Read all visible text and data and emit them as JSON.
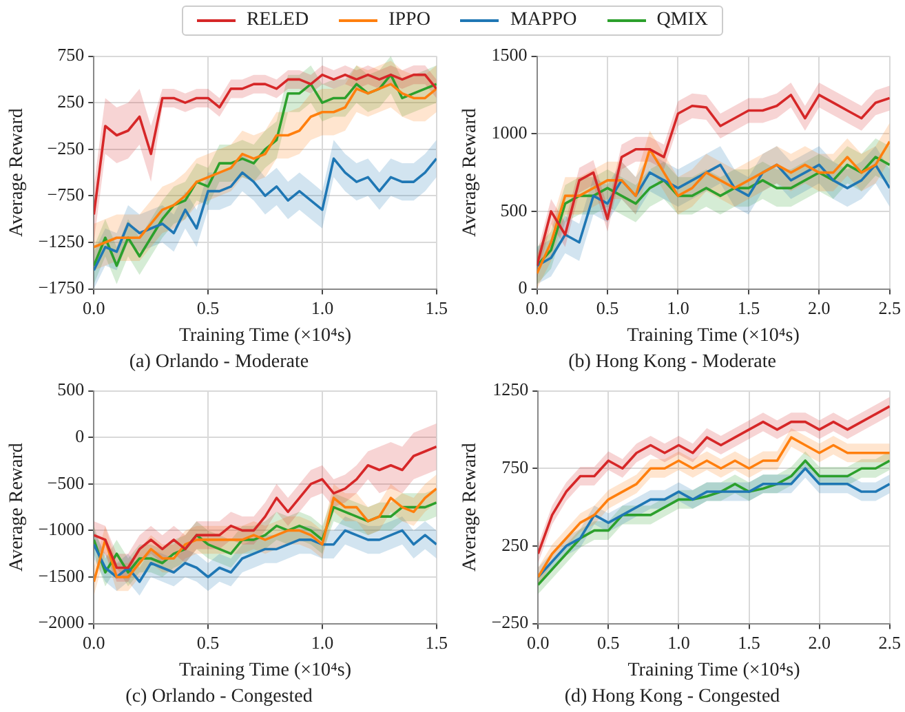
{
  "chart_data": [
    {
      "type": "line",
      "title": "(a) Orlando - Moderate",
      "xlabel": "Training Time (×10⁴s)",
      "ylabel": "Average Reward",
      "legend": "top",
      "grid": true,
      "x": [
        0,
        0.05,
        0.1,
        0.15,
        0.2,
        0.25,
        0.3,
        0.35,
        0.4,
        0.45,
        0.5,
        0.55,
        0.6,
        0.65,
        0.7,
        0.75,
        0.8,
        0.85,
        0.9,
        0.95,
        1.0,
        1.05,
        1.1,
        1.15,
        1.2,
        1.25,
        1.3,
        1.35,
        1.4,
        1.45,
        1.5
      ],
      "xlim": [
        0,
        1.5
      ],
      "xticks": [
        {
          "value": 0,
          "label": "0.0"
        },
        0.5,
        {
          "value": 1,
          "label": "1.0"
        },
        1.5
      ],
      "ylim": [
        -1750,
        750
      ],
      "yticks": [
        {
          "value": -1750,
          "label": "−1750"
        },
        {
          "value": -1250,
          "label": "−1250"
        },
        {
          "value": -750,
          "label": "−750"
        },
        {
          "value": -250,
          "label": "−250"
        },
        250,
        750
      ],
      "series": [
        {
          "name": "RELED",
          "color": "#d62728",
          "values": [
            -950,
            0,
            -100,
            -50,
            100,
            -300,
            300,
            300,
            250,
            300,
            300,
            200,
            400,
            400,
            450,
            450,
            400,
            500,
            500,
            450,
            550,
            500,
            550,
            500,
            550,
            500,
            550,
            500,
            550,
            550,
            400
          ],
          "lower": [
            -1250,
            -300,
            -400,
            -350,
            -200,
            -600,
            200,
            200,
            150,
            200,
            200,
            100,
            300,
            300,
            350,
            350,
            300,
            400,
            400,
            350,
            450,
            400,
            450,
            400,
            450,
            400,
            450,
            400,
            450,
            450,
            300
          ],
          "upper": [
            -650,
            300,
            200,
            250,
            400,
            0,
            400,
            400,
            350,
            400,
            400,
            300,
            500,
            500,
            550,
            550,
            500,
            600,
            600,
            550,
            650,
            600,
            650,
            600,
            650,
            600,
            650,
            600,
            650,
            650,
            500
          ]
        },
        {
          "name": "IPPO",
          "color": "#ff7f0e",
          "values": [
            -1300,
            -1250,
            -1200,
            -1200,
            -1200,
            -1050,
            -900,
            -850,
            -750,
            -600,
            -550,
            -500,
            -450,
            -300,
            -350,
            -300,
            -100,
            -100,
            -50,
            100,
            150,
            150,
            200,
            400,
            350,
            400,
            450,
            350,
            300,
            300,
            400
          ],
          "lower": [
            -1550,
            -1500,
            -1450,
            -1450,
            -1450,
            -1300,
            -1150,
            -1100,
            -1000,
            -850,
            -800,
            -750,
            -700,
            -550,
            -600,
            -550,
            -350,
            -350,
            -300,
            -150,
            -100,
            -100,
            -50,
            150,
            100,
            150,
            200,
            100,
            50,
            50,
            150
          ],
          "upper": [
            -1050,
            -1000,
            -950,
            -950,
            -950,
            -800,
            -650,
            -600,
            -500,
            -350,
            -300,
            -250,
            -200,
            -50,
            -100,
            -50,
            150,
            150,
            200,
            350,
            400,
            400,
            450,
            650,
            600,
            650,
            700,
            600,
            550,
            550,
            650
          ]
        },
        {
          "name": "MAPPO",
          "color": "#1f77b4",
          "values": [
            -1550,
            -1300,
            -1350,
            -1050,
            -1150,
            -1100,
            -1050,
            -1150,
            -900,
            -1100,
            -700,
            -700,
            -650,
            -500,
            -600,
            -750,
            -650,
            -800,
            -700,
            -800,
            -900,
            -350,
            -500,
            -600,
            -550,
            -700,
            -550,
            -600,
            -600,
            -500,
            -350
          ],
          "lower": [
            -1750,
            -1500,
            -1550,
            -1250,
            -1350,
            -1300,
            -1250,
            -1350,
            -1100,
            -1300,
            -900,
            -900,
            -850,
            -700,
            -800,
            -950,
            -850,
            -1000,
            -900,
            -1000,
            -1100,
            -550,
            -700,
            -800,
            -750,
            -900,
            -750,
            -800,
            -800,
            -700,
            -550
          ],
          "upper": [
            -1350,
            -1100,
            -1150,
            -850,
            -950,
            -900,
            -850,
            -950,
            -700,
            -900,
            -500,
            -500,
            -450,
            -300,
            -400,
            -550,
            -450,
            -600,
            -500,
            -600,
            -700,
            -150,
            -300,
            -400,
            -350,
            -500,
            -350,
            -400,
            -400,
            -300,
            -150
          ]
        },
        {
          "name": "QMIX",
          "color": "#2ca02c",
          "values": [
            -1500,
            -1200,
            -1500,
            -1200,
            -1400,
            -1200,
            -1000,
            -850,
            -800,
            -600,
            -650,
            -400,
            -400,
            -350,
            -400,
            -250,
            -150,
            350,
            350,
            450,
            250,
            300,
            300,
            450,
            350,
            400,
            550,
            300,
            350,
            400,
            450
          ],
          "lower": [
            -1700,
            -1400,
            -1700,
            -1400,
            -1600,
            -1400,
            -1200,
            -1050,
            -1000,
            -800,
            -850,
            -600,
            -600,
            -550,
            -600,
            -450,
            -350,
            150,
            150,
            250,
            50,
            100,
            100,
            250,
            150,
            200,
            350,
            100,
            150,
            200,
            250
          ],
          "upper": [
            -1300,
            -1000,
            -1300,
            -1000,
            -1200,
            -1000,
            -800,
            -650,
            -600,
            -400,
            -450,
            -200,
            -200,
            -150,
            -200,
            -50,
            50,
            550,
            550,
            650,
            450,
            500,
            500,
            650,
            550,
            600,
            750,
            500,
            550,
            600,
            650
          ]
        }
      ]
    },
    {
      "type": "line",
      "title": "(b) Hong Kong - Moderate",
      "xlabel": "Training Time (×10⁴s)",
      "ylabel": "Average Reward",
      "grid": true,
      "x": [
        0,
        0.1,
        0.2,
        0.3,
        0.4,
        0.5,
        0.6,
        0.7,
        0.8,
        0.9,
        1.0,
        1.1,
        1.2,
        1.3,
        1.4,
        1.5,
        1.6,
        1.7,
        1.8,
        1.9,
        2.0,
        2.1,
        2.2,
        2.3,
        2.4,
        2.5
      ],
      "xlim": [
        0,
        2.5
      ],
      "xticks": [
        {
          "value": 0,
          "label": "0.0"
        },
        0.5,
        {
          "value": 1,
          "label": "1.0"
        },
        1.5,
        {
          "value": 2,
          "label": "2.0"
        },
        2.5
      ],
      "ylim": [
        0,
        1500
      ],
      "yticks": [
        0,
        500,
        1000,
        1500
      ],
      "series": [
        {
          "color": "#d62728",
          "values": [
            150,
            500,
            350,
            700,
            750,
            450,
            850,
            900,
            900,
            850,
            1130,
            1180,
            1170,
            1050,
            1100,
            1150,
            1150,
            1180,
            1250,
            1100,
            1250,
            1200,
            1150,
            1100,
            1200,
            1230
          ],
          "lower": [
            70,
            420,
            270,
            620,
            670,
            370,
            770,
            820,
            820,
            770,
            1050,
            1100,
            1090,
            970,
            1020,
            1070,
            1070,
            1100,
            1170,
            1020,
            1170,
            1120,
            1070,
            1020,
            1120,
            1150
          ],
          "upper": [
            230,
            580,
            430,
            780,
            830,
            530,
            930,
            980,
            980,
            930,
            1210,
            1260,
            1250,
            1130,
            1180,
            1230,
            1230,
            1260,
            1330,
            1180,
            1330,
            1280,
            1230,
            1180,
            1280,
            1310
          ]
        },
        {
          "color": "#ff7f0e",
          "values": [
            100,
            300,
            600,
            600,
            650,
            700,
            700,
            600,
            900,
            750,
            600,
            650,
            750,
            700,
            650,
            700,
            750,
            800,
            750,
            800,
            750,
            750,
            850,
            750,
            800,
            950
          ],
          "lower": [
            0,
            180,
            480,
            480,
            530,
            580,
            580,
            480,
            780,
            630,
            480,
            530,
            630,
            580,
            530,
            580,
            630,
            680,
            630,
            680,
            630,
            630,
            730,
            630,
            680,
            830
          ],
          "upper": [
            220,
            420,
            720,
            720,
            770,
            820,
            820,
            720,
            1020,
            870,
            720,
            770,
            870,
            820,
            770,
            820,
            870,
            920,
            870,
            920,
            870,
            870,
            970,
            870,
            920,
            1070
          ]
        },
        {
          "color": "#1f77b4",
          "values": [
            150,
            200,
            350,
            300,
            600,
            550,
            700,
            600,
            750,
            700,
            650,
            700,
            750,
            800,
            650,
            600,
            750,
            800,
            700,
            750,
            800,
            700,
            650,
            700,
            800,
            650
          ],
          "lower": [
            30,
            80,
            230,
            180,
            480,
            430,
            580,
            480,
            630,
            580,
            530,
            580,
            630,
            680,
            530,
            480,
            630,
            680,
            580,
            630,
            680,
            580,
            530,
            580,
            680,
            530
          ],
          "upper": [
            270,
            320,
            470,
            420,
            720,
            670,
            820,
            720,
            870,
            820,
            770,
            820,
            870,
            920,
            770,
            720,
            870,
            920,
            820,
            870,
            920,
            820,
            770,
            820,
            920,
            770
          ]
        },
        {
          "color": "#2ca02c",
          "values": [
            150,
            250,
            550,
            600,
            600,
            650,
            600,
            550,
            650,
            700,
            600,
            600,
            650,
            600,
            650,
            650,
            700,
            650,
            650,
            700,
            750,
            700,
            800,
            750,
            850,
            800
          ],
          "lower": [
            30,
            130,
            430,
            480,
            480,
            530,
            480,
            430,
            530,
            580,
            480,
            480,
            530,
            480,
            530,
            530,
            580,
            530,
            530,
            580,
            630,
            580,
            680,
            630,
            730,
            680
          ],
          "upper": [
            270,
            370,
            670,
            720,
            720,
            770,
            720,
            670,
            770,
            820,
            720,
            720,
            770,
            720,
            770,
            770,
            820,
            770,
            770,
            820,
            870,
            820,
            920,
            870,
            970,
            920
          ]
        }
      ]
    },
    {
      "type": "line",
      "title": "(c) Orlando - Congested",
      "xlabel": "Training Time (×10⁴s)",
      "ylabel": "Average Reward",
      "grid": true,
      "x": [
        0,
        0.05,
        0.1,
        0.15,
        0.2,
        0.25,
        0.3,
        0.35,
        0.4,
        0.45,
        0.5,
        0.55,
        0.6,
        0.65,
        0.7,
        0.75,
        0.8,
        0.85,
        0.9,
        0.95,
        1.0,
        1.05,
        1.1,
        1.15,
        1.2,
        1.25,
        1.3,
        1.35,
        1.4,
        1.45,
        1.5
      ],
      "xlim": [
        0,
        1.5
      ],
      "xticks": [
        {
          "value": 0,
          "label": "0.0"
        },
        0.5,
        {
          "value": 1,
          "label": "1.0"
        },
        1.5
      ],
      "ylim": [
        -2000,
        500
      ],
      "yticks": [
        {
          "value": -2000,
          "label": "−2000"
        },
        {
          "value": -1500,
          "label": "−1500"
        },
        {
          "value": -1000,
          "label": "−1000"
        },
        {
          "value": -500,
          "label": "−500"
        },
        0,
        500
      ],
      "series": [
        {
          "color": "#d62728",
          "values": [
            -1050,
            -1100,
            -1400,
            -1400,
            -1200,
            -1100,
            -1200,
            -1100,
            -1200,
            -1050,
            -1050,
            -1050,
            -950,
            -1000,
            -1000,
            -850,
            -650,
            -800,
            -650,
            -500,
            -450,
            -600,
            -550,
            -450,
            -300,
            -350,
            -300,
            -350,
            -200,
            -150,
            -100
          ],
          "lower": [
            -1200,
            -1250,
            -1550,
            -1550,
            -1350,
            -1250,
            -1350,
            -1250,
            -1350,
            -1200,
            -1200,
            -1200,
            -1100,
            -1150,
            -1150,
            -1000,
            -800,
            -950,
            -800,
            -650,
            -600,
            -750,
            -700,
            -600,
            -450,
            -600,
            -550,
            -600,
            -450,
            -400,
            -350
          ],
          "upper": [
            -900,
            -950,
            -1250,
            -1250,
            -1050,
            -950,
            -1050,
            -950,
            -1050,
            -900,
            -900,
            -900,
            -800,
            -850,
            -850,
            -700,
            -500,
            -650,
            -500,
            -350,
            -300,
            -450,
            -400,
            -300,
            -150,
            -100,
            -50,
            -100,
            50,
            100,
            150
          ]
        },
        {
          "color": "#ff7f0e",
          "values": [
            -1550,
            -1100,
            -1500,
            -1500,
            -1350,
            -1200,
            -1300,
            -1300,
            -1150,
            -1100,
            -1100,
            -1100,
            -1100,
            -1100,
            -1050,
            -1100,
            -1050,
            -1000,
            -1000,
            -1050,
            -1150,
            -650,
            -750,
            -750,
            -900,
            -850,
            -650,
            -750,
            -800,
            -650,
            -550
          ],
          "lower": [
            -1700,
            -1250,
            -1650,
            -1650,
            -1500,
            -1350,
            -1450,
            -1450,
            -1300,
            -1250,
            -1250,
            -1250,
            -1250,
            -1250,
            -1200,
            -1250,
            -1200,
            -1150,
            -1150,
            -1200,
            -1300,
            -800,
            -900,
            -900,
            -1050,
            -1000,
            -800,
            -900,
            -950,
            -800,
            -700
          ],
          "upper": [
            -1400,
            -950,
            -1350,
            -1350,
            -1200,
            -1050,
            -1150,
            -1150,
            -1000,
            -950,
            -950,
            -950,
            -950,
            -950,
            -900,
            -950,
            -900,
            -850,
            -850,
            -900,
            -1000,
            -500,
            -600,
            -600,
            -750,
            -700,
            -500,
            -600,
            -650,
            -500,
            -400
          ]
        },
        {
          "color": "#1f77b4",
          "values": [
            -1150,
            -1400,
            -1500,
            -1400,
            -1550,
            -1350,
            -1400,
            -1450,
            -1350,
            -1400,
            -1500,
            -1400,
            -1450,
            -1300,
            -1250,
            -1200,
            -1200,
            -1150,
            -1100,
            -1100,
            -1150,
            -1150,
            -1000,
            -1050,
            -1100,
            -1100,
            -1050,
            -1000,
            -1150,
            -1050,
            -1150
          ],
          "lower": [
            -1300,
            -1550,
            -1650,
            -1550,
            -1700,
            -1500,
            -1550,
            -1600,
            -1500,
            -1550,
            -1650,
            -1550,
            -1600,
            -1450,
            -1400,
            -1350,
            -1350,
            -1300,
            -1250,
            -1250,
            -1300,
            -1300,
            -1150,
            -1200,
            -1250,
            -1250,
            -1200,
            -1150,
            -1300,
            -1200,
            -1300
          ],
          "upper": [
            -1000,
            -1250,
            -1350,
            -1250,
            -1400,
            -1200,
            -1250,
            -1300,
            -1200,
            -1250,
            -1350,
            -1250,
            -1300,
            -1150,
            -1100,
            -1050,
            -1050,
            -1000,
            -950,
            -950,
            -1000,
            -1000,
            -850,
            -900,
            -950,
            -950,
            -900,
            -850,
            -1000,
            -900,
            -1000
          ]
        },
        {
          "color": "#2ca02c",
          "values": [
            -1100,
            -1450,
            -1250,
            -1450,
            -1300,
            -1300,
            -1350,
            -1250,
            -1200,
            -1050,
            -1150,
            -1200,
            -1250,
            -1100,
            -1100,
            -1050,
            -950,
            -1000,
            -950,
            -1000,
            -1100,
            -750,
            -800,
            -850,
            -900,
            -850,
            -850,
            -750,
            -750,
            -750,
            -700
          ],
          "lower": [
            -1250,
            -1600,
            -1400,
            -1600,
            -1450,
            -1450,
            -1500,
            -1400,
            -1350,
            -1200,
            -1300,
            -1350,
            -1400,
            -1250,
            -1250,
            -1200,
            -1100,
            -1150,
            -1100,
            -1150,
            -1250,
            -900,
            -950,
            -1000,
            -1050,
            -1000,
            -1000,
            -900,
            -900,
            -900,
            -850
          ],
          "upper": [
            -950,
            -1300,
            -1100,
            -1300,
            -1150,
            -1150,
            -1200,
            -1100,
            -1050,
            -900,
            -1000,
            -1050,
            -1100,
            -950,
            -950,
            -900,
            -800,
            -850,
            -800,
            -850,
            -950,
            -600,
            -650,
            -700,
            -750,
            -700,
            -700,
            -600,
            -600,
            -600,
            -550
          ]
        }
      ]
    },
    {
      "type": "line",
      "title": "(d) Hong Kong - Congested",
      "xlabel": "Training Time (×10⁴s)",
      "ylabel": "Average Reward",
      "grid": true,
      "x": [
        0,
        0.1,
        0.2,
        0.3,
        0.4,
        0.5,
        0.6,
        0.7,
        0.8,
        0.9,
        1.0,
        1.1,
        1.2,
        1.3,
        1.4,
        1.5,
        1.6,
        1.7,
        1.8,
        1.9,
        2.0,
        2.1,
        2.2,
        2.3,
        2.4,
        2.5
      ],
      "xlim": [
        0,
        2.5
      ],
      "xticks": [
        {
          "value": 0,
          "label": "0.0"
        },
        0.5,
        {
          "value": 1,
          "label": "1.0"
        },
        1.5,
        {
          "value": 2,
          "label": "2.0"
        },
        2.5
      ],
      "ylim": [
        -250,
        1250
      ],
      "yticks": [
        {
          "value": -250,
          "label": "−250"
        },
        250,
        750,
        1250
      ],
      "series": [
        {
          "color": "#d62728",
          "values": [
            200,
            450,
            600,
            700,
            700,
            800,
            750,
            850,
            900,
            850,
            900,
            850,
            950,
            900,
            950,
            1000,
            1050,
            1000,
            1050,
            1050,
            1000,
            1050,
            1000,
            1050,
            1100,
            1150
          ],
          "lower": [
            140,
            390,
            540,
            640,
            640,
            740,
            690,
            790,
            840,
            790,
            840,
            790,
            890,
            840,
            890,
            940,
            990,
            940,
            990,
            990,
            940,
            990,
            940,
            990,
            1040,
            1090
          ],
          "upper": [
            260,
            510,
            660,
            760,
            760,
            860,
            810,
            910,
            960,
            910,
            960,
            910,
            1010,
            960,
            1010,
            1060,
            1110,
            1060,
            1110,
            1110,
            1060,
            1110,
            1060,
            1110,
            1160,
            1210
          ]
        },
        {
          "color": "#ff7f0e",
          "values": [
            50,
            200,
            300,
            400,
            450,
            550,
            600,
            650,
            750,
            750,
            800,
            750,
            800,
            750,
            800,
            750,
            800,
            800,
            950,
            900,
            850,
            900,
            850,
            850,
            850,
            850
          ],
          "lower": [
            -10,
            140,
            240,
            340,
            390,
            490,
            540,
            590,
            690,
            690,
            740,
            690,
            740,
            690,
            740,
            690,
            740,
            740,
            890,
            840,
            790,
            840,
            790,
            790,
            790,
            790
          ],
          "upper": [
            110,
            260,
            360,
            460,
            510,
            610,
            660,
            710,
            810,
            810,
            860,
            810,
            860,
            810,
            860,
            810,
            860,
            860,
            1010,
            960,
            910,
            960,
            910,
            910,
            910,
            910
          ]
        },
        {
          "color": "#1f77b4",
          "values": [
            50,
            150,
            250,
            300,
            450,
            400,
            450,
            500,
            550,
            550,
            600,
            550,
            600,
            600,
            600,
            600,
            650,
            650,
            650,
            750,
            650,
            650,
            650,
            600,
            600,
            650
          ],
          "lower": [
            -10,
            90,
            190,
            240,
            390,
            340,
            390,
            440,
            490,
            490,
            540,
            490,
            540,
            540,
            540,
            540,
            590,
            590,
            590,
            690,
            590,
            590,
            590,
            540,
            540,
            590
          ],
          "upper": [
            110,
            210,
            310,
            360,
            510,
            460,
            510,
            560,
            610,
            610,
            660,
            610,
            660,
            660,
            660,
            660,
            710,
            710,
            710,
            810,
            710,
            710,
            710,
            660,
            660,
            710
          ]
        },
        {
          "color": "#2ca02c",
          "values": [
            0,
            100,
            200,
            300,
            350,
            350,
            450,
            450,
            450,
            500,
            550,
            550,
            570,
            600,
            650,
            600,
            620,
            650,
            700,
            800,
            700,
            700,
            700,
            750,
            750,
            800
          ],
          "lower": [
            -60,
            40,
            140,
            240,
            290,
            290,
            390,
            390,
            390,
            440,
            490,
            490,
            540,
            540,
            590,
            540,
            590,
            590,
            640,
            740,
            640,
            640,
            640,
            690,
            690,
            740
          ],
          "upper": [
            60,
            160,
            260,
            360,
            410,
            410,
            510,
            510,
            510,
            560,
            610,
            610,
            660,
            660,
            710,
            660,
            710,
            710,
            760,
            860,
            760,
            760,
            760,
            810,
            810,
            860
          ]
        }
      ]
    }
  ]
}
